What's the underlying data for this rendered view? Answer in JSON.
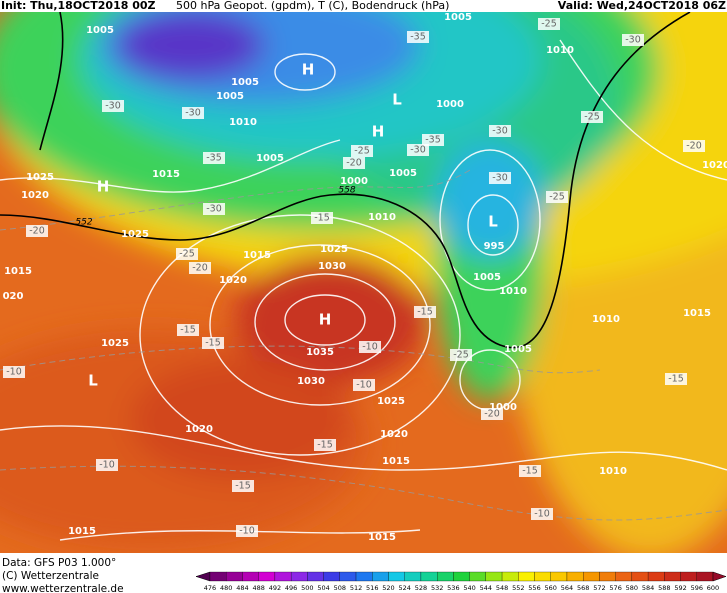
{
  "header": {
    "init": "Init: Thu,18OCT2018 00Z",
    "title": "500 hPa Geopot. (gpdm), T (C), Bodendruck (hPa)",
    "valid": "Valid: Wed,24OCT2018 06Z"
  },
  "footer": {
    "source": "Data: GFS P03 1.000°",
    "copyright": "(C) Wetterzentrale",
    "url": "www.wetterzentrale.de"
  },
  "legend": {
    "levels": [
      "476",
      "480",
      "484",
      "488",
      "492",
      "496",
      "500",
      "504",
      "508",
      "512",
      "516",
      "520",
      "524",
      "528",
      "532",
      "536",
      "540",
      "544",
      "548",
      "552",
      "556",
      "560",
      "564",
      "568",
      "572",
      "576",
      "580",
      "584",
      "588",
      "592",
      "596",
      "600"
    ]
  },
  "map": {
    "isobars": [
      "1005",
      "1005",
      "1010",
      "1005",
      "1005",
      "1000",
      "1010",
      "1005",
      "1015",
      "1005",
      "1000",
      "1025",
      "1020",
      "1025",
      "1010",
      "995",
      "1015",
      "1025",
      "1030",
      "1005",
      "1020",
      "1010",
      "1015",
      "020",
      "1010",
      "1015",
      "1025",
      "1035",
      "1005",
      "1030",
      "1025",
      "1000",
      "1020",
      "1020",
      "1015",
      "1010",
      "1015",
      "1015",
      "1020"
    ],
    "temperatures": [
      "-35",
      "-25",
      "-30",
      "-30",
      "-30",
      "-25",
      "-35",
      "-30",
      "-35",
      "-25",
      "-20",
      "-30",
      "-30",
      "-25",
      "-20",
      "-30",
      "-20",
      "-25",
      "-20",
      "-15",
      "-15",
      "-15",
      "-15",
      "-10",
      "-25",
      "-10",
      "-20",
      "-15",
      "-10",
      "-15",
      "-10",
      "-15",
      "-15",
      "-10",
      "-10"
    ],
    "centers": [
      "H",
      "L",
      "H",
      "H",
      "L",
      "H",
      "L"
    ],
    "thickness": [
      "552",
      "558"
    ]
  }
}
